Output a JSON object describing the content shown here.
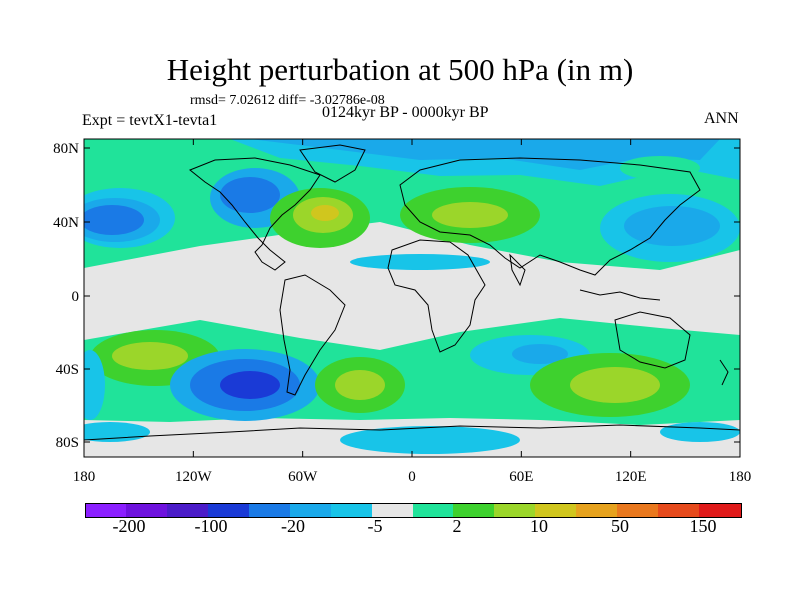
{
  "title": "Height perturbation at 500 hPa (in m)",
  "stats": "rmsd= 7.02612 diff= -3.02786e-08",
  "experiment": "Expt = tevtX1-tevta1",
  "period": "0124kyr BP - 0000kyr BP",
  "season": "ANN",
  "map": {
    "lat_ticks": [
      "80N",
      "40N",
      "0",
      "40S",
      "80S"
    ],
    "lon_ticks": [
      "180",
      "120W",
      "60W",
      "0",
      "60E",
      "120E",
      "180"
    ]
  },
  "colorbar": {
    "colors": [
      "#8b1fff",
      "#6e12de",
      "#4b1cc9",
      "#1a3ad6",
      "#1a7ae6",
      "#1aa9ea",
      "#18c4e8",
      "#e6e6e6",
      "#20e39a",
      "#3ed12e",
      "#9bd62a",
      "#d0c61e",
      "#e6a21e",
      "#e9781e",
      "#e64a1c",
      "#e01a1a"
    ],
    "labels": [
      "-200",
      "-100",
      "-20",
      "-5",
      "2",
      "10",
      "50",
      "150"
    ]
  }
}
